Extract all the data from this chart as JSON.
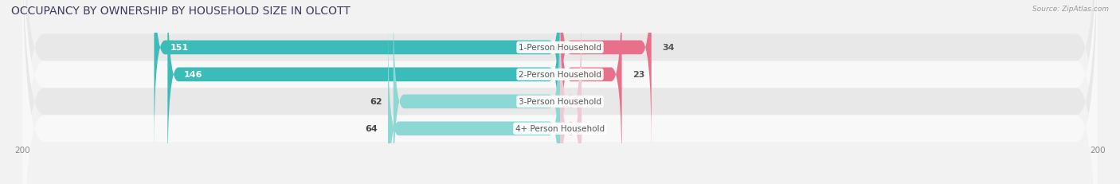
{
  "title": "OCCUPANCY BY OWNERSHIP BY HOUSEHOLD SIZE IN OLCOTT",
  "source": "Source: ZipAtlas.com",
  "categories": [
    "1-Person Household",
    "2-Person Household",
    "3-Person Household",
    "4+ Person Household"
  ],
  "owner_values": [
    151,
    146,
    62,
    64
  ],
  "renter_values": [
    34,
    23,
    0,
    0
  ],
  "xlim": 200,
  "owner_color_dark": "#3bbcb8",
  "owner_color_light": "#8dd8d5",
  "renter_color_dark": "#e8708a",
  "renter_color_light": "#f0a8be",
  "renter_zero_color": "#f0c8d8",
  "bg_color": "#f2f2f2",
  "row_bg_light": "#f8f8f8",
  "row_bg_dark": "#e8e8e8",
  "title_fontsize": 10,
  "label_fontsize": 7.5,
  "value_fontsize": 8,
  "bar_height": 0.52,
  "legend_owner_color": "#5ecfcc",
  "legend_renter_color": "#f09ab0",
  "center_label_color": "#555555",
  "tick_color": "#888888"
}
